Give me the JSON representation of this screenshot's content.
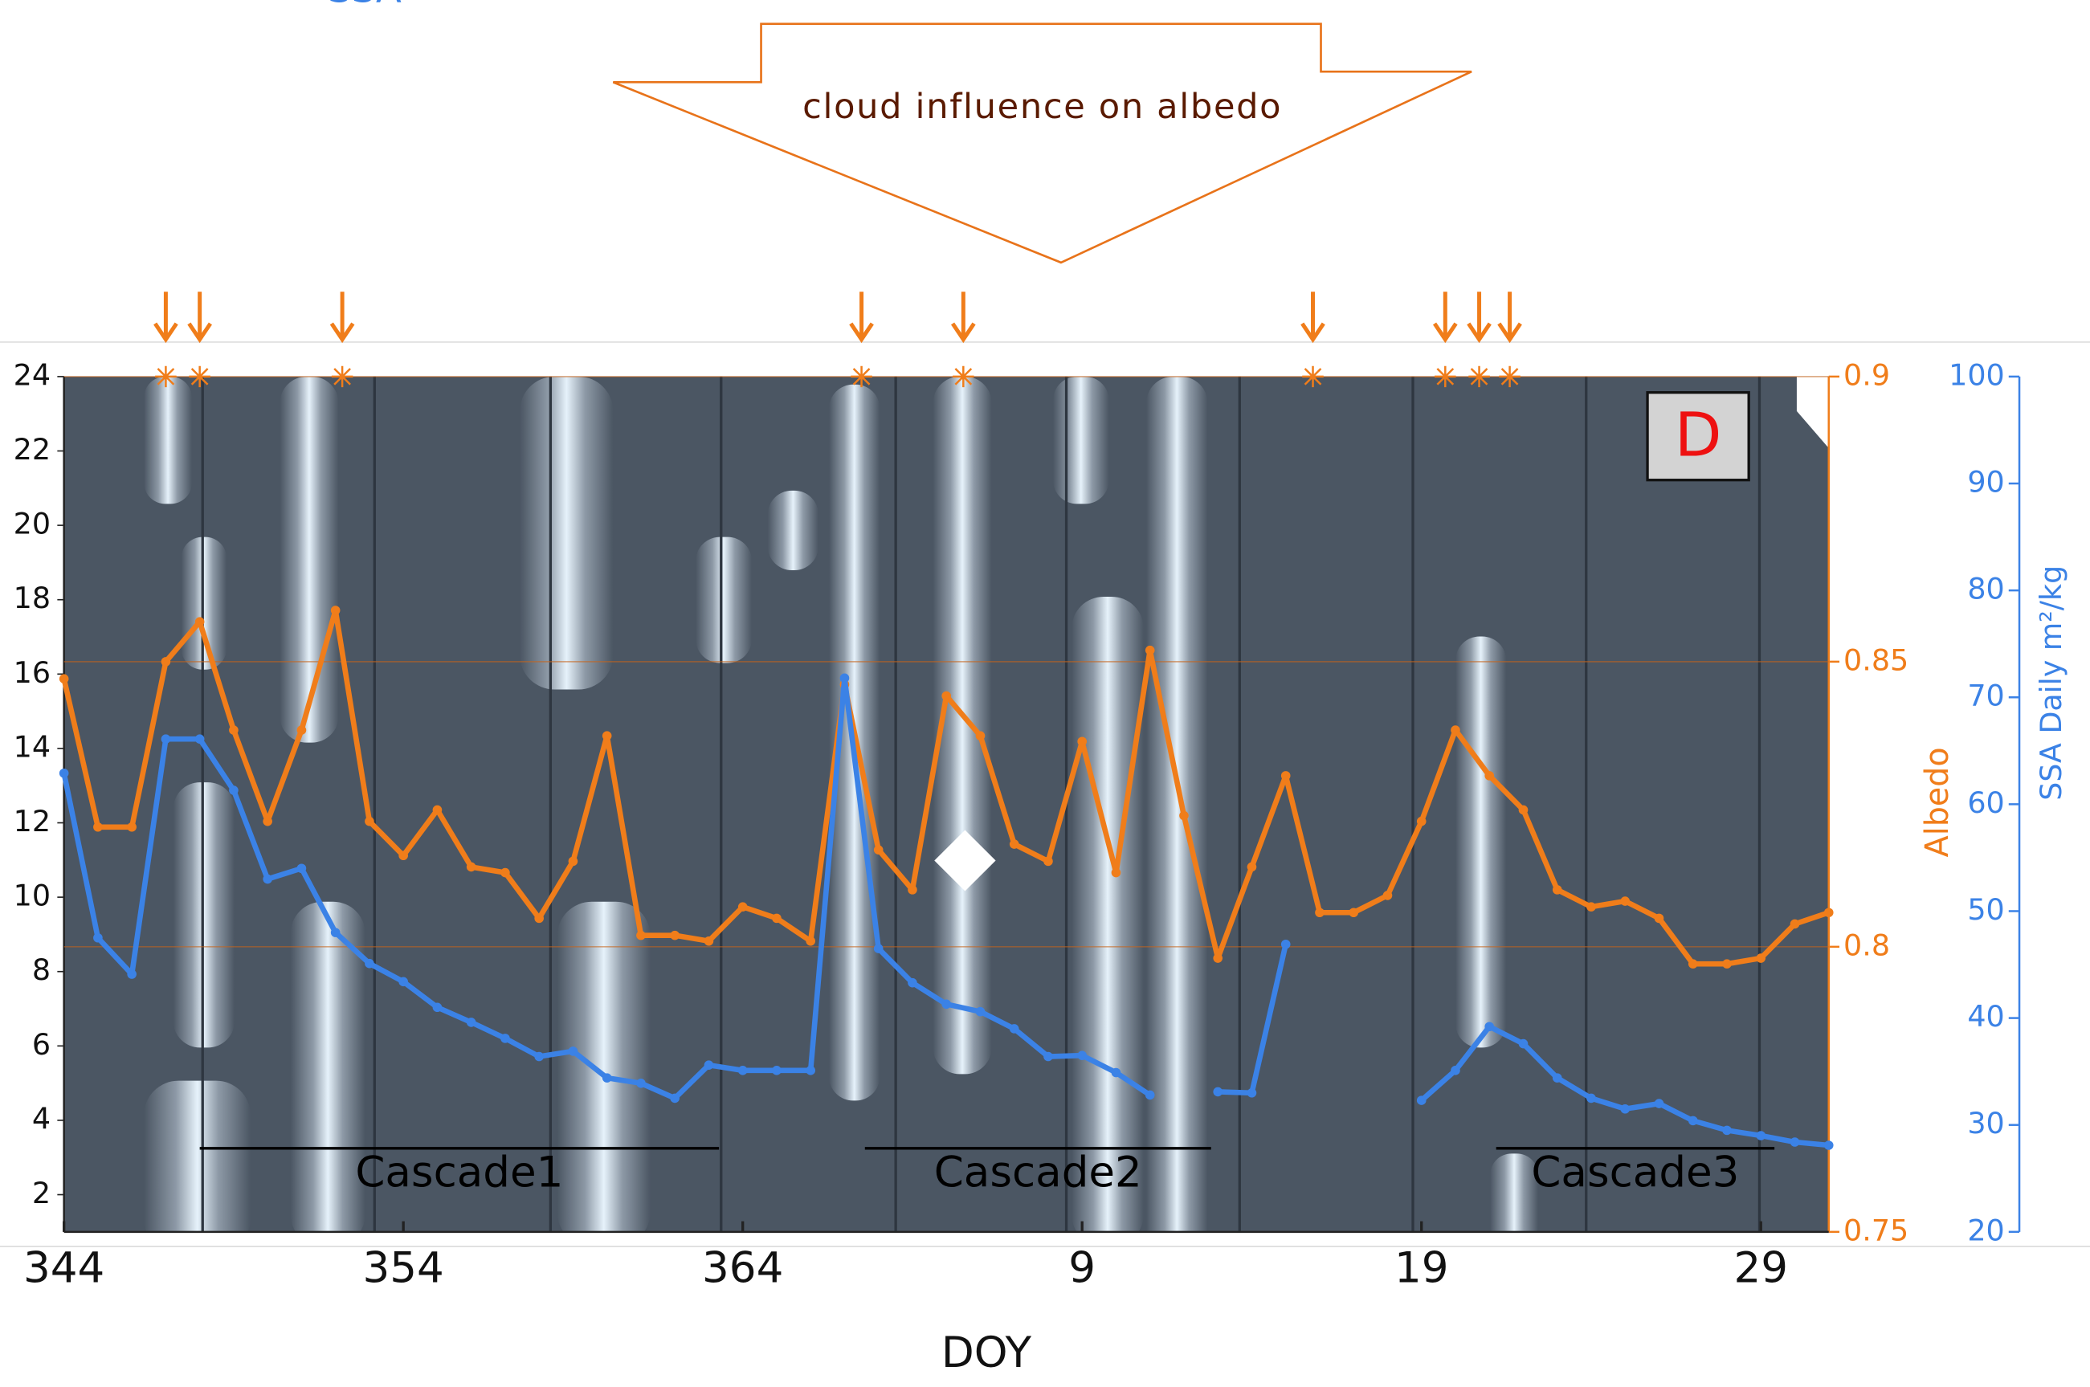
{
  "chart_data": {
    "type": "line",
    "title": "cloud influence on albedo",
    "panel_label": "D",
    "x": [
      344,
      345,
      346,
      347,
      348,
      349,
      350,
      351,
      352,
      353,
      354,
      355,
      356,
      357,
      358,
      359,
      360,
      361,
      362,
      363,
      364,
      365,
      366,
      367,
      368,
      369,
      370,
      371,
      372,
      373,
      374,
      375,
      376,
      377,
      378,
      379,
      380,
      381,
      382,
      383,
      384,
      385,
      386,
      387,
      388,
      389,
      390,
      391,
      392,
      393,
      394,
      395,
      396
    ],
    "xlim": [
      344,
      396
    ],
    "xticks": [
      344,
      354,
      364,
      {
        "value": 374,
        "label": "9"
      },
      {
        "value": 384,
        "label": "19"
      },
      {
        "value": 394,
        "label": "29"
      }
    ],
    "xlabel": "DOY",
    "ylim": [
      1,
      24
    ],
    "yticks": [
      2,
      4,
      6,
      8,
      10,
      12,
      14,
      16,
      18,
      20,
      22,
      24
    ],
    "y2lim": [
      0.75,
      0.9
    ],
    "y2ticks": [
      0.75,
      0.8,
      0.85,
      0.9
    ],
    "y2label": "Albedo",
    "y2grid": true,
    "y3lim": [
      20,
      100
    ],
    "y3ticks": [
      20,
      30,
      40,
      50,
      60,
      70,
      80,
      90,
      100
    ],
    "y3label": "SSA Daily m²/kg",
    "series": [
      {
        "color": "#f07d1a",
        "axis": "y2",
        "values": [
          0.847,
          0.821,
          0.821,
          0.85,
          0.857,
          0.838,
          0.822,
          0.838,
          0.859,
          0.822,
          0.816,
          0.824,
          0.814,
          0.813,
          0.805,
          0.815,
          0.837,
          0.802,
          0.802,
          0.801,
          0.807,
          0.805,
          0.801,
          0.846,
          0.817,
          0.81,
          0.844,
          0.837,
          0.818,
          0.815,
          0.836,
          0.813,
          0.852,
          0.823,
          0.798,
          0.814,
          0.83,
          0.806,
          0.806,
          0.809,
          0.822,
          0.838,
          0.83,
          0.824,
          0.81,
          0.807,
          0.808,
          0.805,
          0.797,
          0.797,
          0.798,
          0.804,
          0.806
        ]
      },
      {
        "name": "SSA",
        "color": "#3b82e6",
        "axis": "y3",
        "values": [
          62.9,
          47.5,
          44.1,
          66.1,
          66.1,
          61.3,
          53.0,
          54.0,
          48.0,
          45.1,
          43.4,
          41.0,
          39.6,
          38.1,
          36.4,
          36.9,
          34.4,
          33.9,
          32.5,
          35.6,
          35.1,
          35.1,
          35.1,
          71.8,
          46.5,
          43.3,
          41.3,
          40.6,
          39.0,
          36.4,
          36.5,
          34.9,
          32.8,
          null,
          33.1,
          33.0,
          46.9,
          null,
          null,
          null,
          32.3,
          35.1,
          39.2,
          37.6,
          34.4,
          32.5,
          31.5,
          32.0,
          30.4,
          29.5,
          29.0,
          28.4,
          28.1
        ]
      }
    ],
    "cloud_events": [
      347,
      348,
      352.2,
      367.5,
      370.5,
      380.8,
      384.7,
      385.7,
      386.6
    ],
    "cascades": [
      {
        "label": "Cascade1",
        "start": 348,
        "end": 363.3
      },
      {
        "label": "Cascade2",
        "start": 367.6,
        "end": 377.8
      },
      {
        "label": "Cascade3",
        "start": 386.2,
        "end": 394.4
      }
    ]
  }
}
